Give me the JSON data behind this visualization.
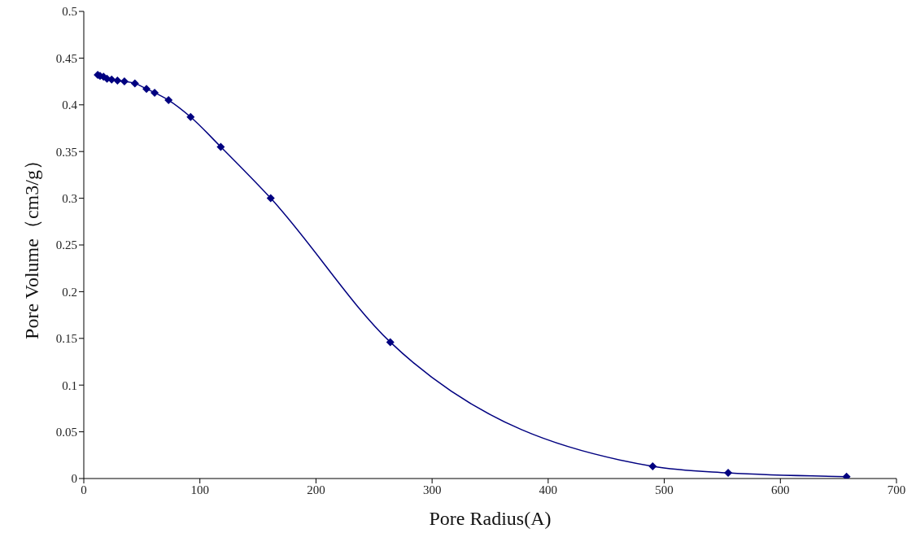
{
  "chart_data": {
    "type": "line",
    "xlabel": "Pore Radius(A)",
    "ylabel": "Pore Volume（cm3/g）",
    "x": [
      12,
      14,
      17,
      20,
      24,
      29,
      35,
      44,
      54,
      61,
      73,
      92,
      118,
      161,
      264,
      490,
      555,
      657
    ],
    "series": [
      {
        "color": "#000080",
        "values": [
          0.432,
          0.431,
          0.43,
          0.428,
          0.427,
          0.426,
          0.425,
          0.423,
          0.417,
          0.413,
          0.405,
          0.387,
          0.355,
          0.3,
          0.146,
          0.013,
          0.006,
          0.002
        ]
      }
    ],
    "xlim": [
      0,
      700
    ],
    "xticks": [
      0,
      100,
      200,
      300,
      400,
      500,
      600,
      700
    ],
    "ylim": [
      0,
      0.5
    ],
    "yticks": [
      0,
      0.05,
      0.1,
      0.15,
      0.2,
      0.25,
      0.3,
      0.35,
      0.4,
      0.45,
      0.5
    ],
    "grid": false,
    "legend": false,
    "marker": "diamond",
    "line_style": "solid"
  }
}
